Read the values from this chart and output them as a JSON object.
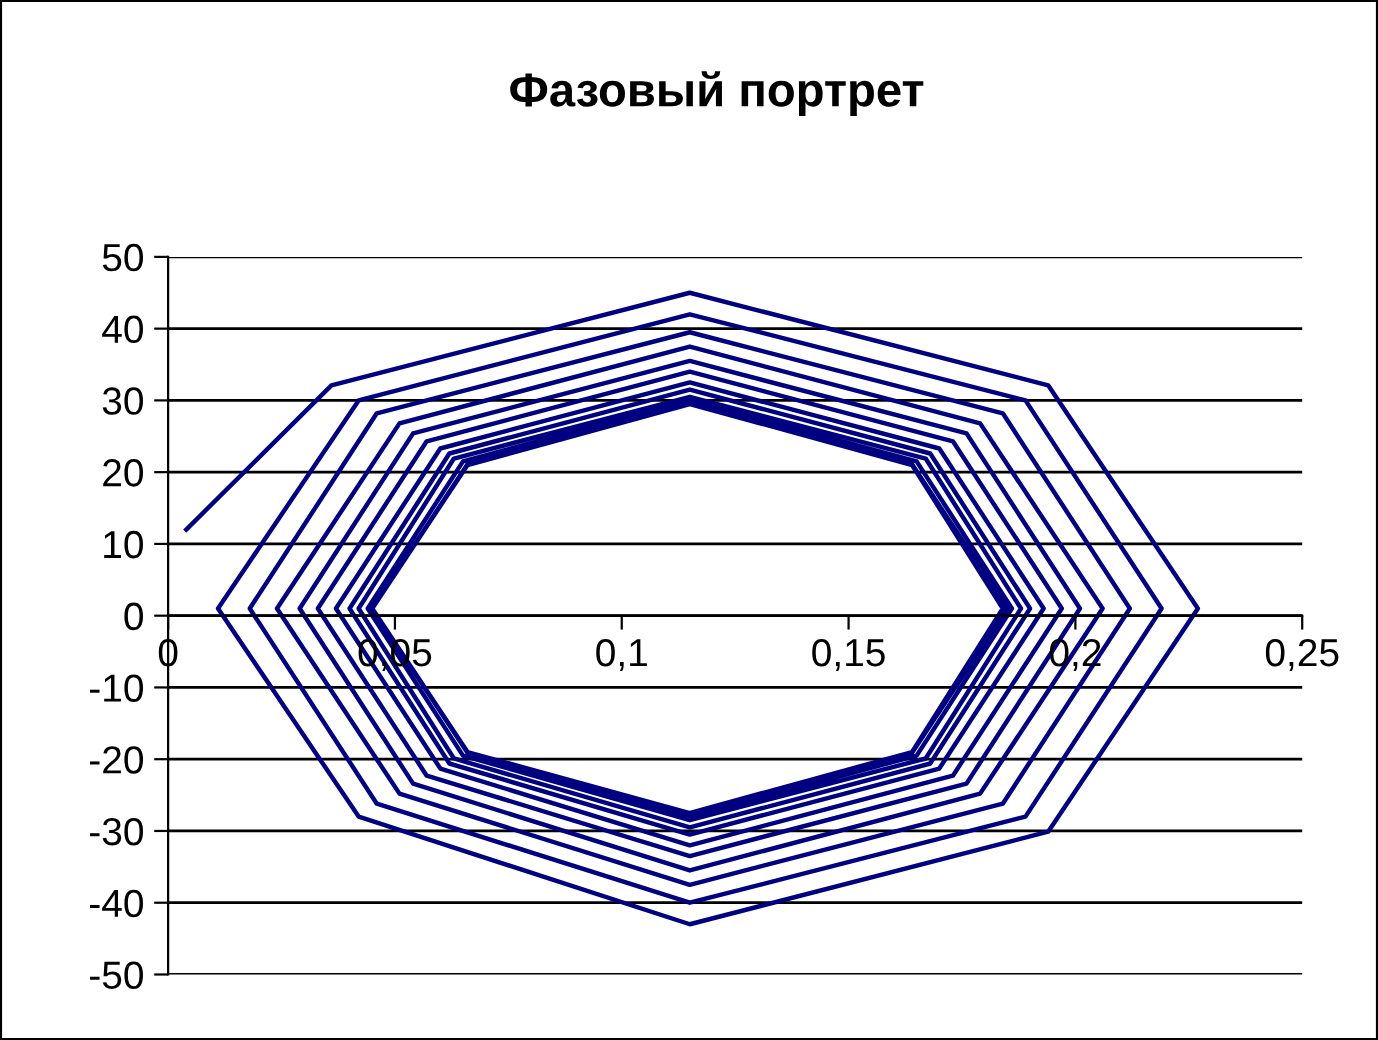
{
  "chart_data": {
    "type": "line",
    "title": "Фазовый портрет",
    "marker": "none",
    "line_style": "solid",
    "grid": "y",
    "legend": false,
    "xlim": [
      0,
      0.25
    ],
    "ylim": [
      -50,
      50
    ],
    "xticks": [
      0,
      {
        "value": 0.05,
        "label": "0,05"
      },
      {
        "value": 0.1,
        "label": "0,1"
      },
      {
        "value": 0.15,
        "label": "0,15"
      },
      {
        "value": 0.2,
        "label": "0,2"
      },
      {
        "value": 0.25,
        "label": "0,25"
      }
    ],
    "yticks": [
      -50,
      -40,
      -30,
      -20,
      -10,
      0,
      10,
      20,
      30,
      40,
      50
    ],
    "series": [
      {
        "color": "#000080",
        "x": [
          0.004,
          0.036,
          0.115,
          0.194,
          0.227,
          0.194,
          0.115,
          0.042,
          0.011,
          0.042,
          0.115,
          0.189,
          0.219,
          0.189,
          0.115,
          0.046,
          0.018,
          0.046,
          0.115,
          0.184,
          0.212,
          0.184,
          0.115,
          0.051,
          0.024,
          0.051,
          0.115,
          0.179,
          0.206,
          0.179,
          0.115,
          0.054,
          0.029,
          0.054,
          0.115,
          0.176,
          0.201,
          0.176,
          0.115,
          0.057,
          0.033,
          0.057,
          0.115,
          0.173,
          0.197,
          0.173,
          0.115,
          0.06,
          0.037,
          0.06,
          0.115,
          0.17,
          0.193,
          0.17,
          0.115,
          0.062,
          0.04,
          0.062,
          0.115,
          0.168,
          0.19,
          0.168,
          0.115,
          0.063,
          0.042,
          0.063,
          0.115,
          0.167,
          0.188,
          0.167,
          0.115,
          0.065,
          0.044,
          0.065,
          0.115,
          0.165,
          0.186,
          0.165,
          0.115,
          0.066,
          0.045,
          0.066,
          0.115,
          0.164,
          0.185,
          0.164,
          0.115,
          0.066,
          0.045,
          0.066,
          0.115,
          0.164,
          0.184,
          0.164,
          0.115
        ],
        "values": [
          12,
          32.1,
          45,
          32.1,
          1,
          -30.1,
          -43,
          -28,
          1,
          30,
          42,
          30,
          1,
          -28,
          -40,
          -26.2,
          1,
          28.2,
          39.5,
          28.2,
          1,
          -26.2,
          -37.5,
          -24.8,
          1,
          26.8,
          37.5,
          26.8,
          1,
          -24.8,
          -35.5,
          -23.4,
          1,
          25.4,
          35.5,
          25.4,
          1,
          -23.4,
          -33.5,
          -22.3,
          1,
          24.3,
          34,
          24.3,
          1,
          -22.3,
          -32,
          -21.3,
          1,
          23.3,
          32.5,
          23.3,
          1,
          -21.3,
          -30.5,
          -20.6,
          1,
          22.6,
          31.5,
          22.6,
          1,
          -20.6,
          -29.5,
          -19.9,
          1,
          21.9,
          30.5,
          21.9,
          1,
          -19.9,
          -28.5,
          -19.5,
          1,
          21.5,
          30,
          21.5,
          1,
          -19.5,
          -28,
          -19.1,
          1,
          21.1,
          29.5,
          21.1,
          1,
          -19.1,
          -27.5,
          -19,
          1,
          21,
          29.5,
          21,
          1,
          -19,
          -27.5
        ]
      }
    ]
  }
}
